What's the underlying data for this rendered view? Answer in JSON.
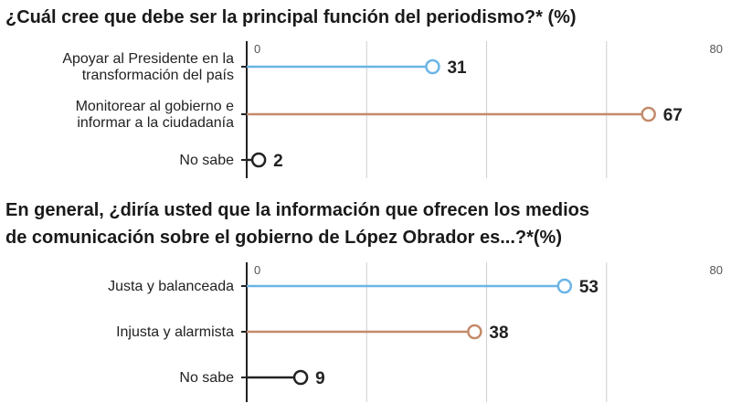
{
  "chart_data": [
    {
      "type": "lollipop",
      "title": "¿Cuál cree que debe ser la principal función del periodismo?* (%)",
      "axis": {
        "min_label": "0",
        "max_label": "80",
        "range": [
          0,
          80
        ]
      },
      "categories": [
        "Apoyar al Presidente en la\ntransformación del país",
        "Monitorear al gobierno e\ninformar a la ciudadanía",
        "No sabe"
      ],
      "values": [
        31,
        67,
        2
      ],
      "value_labels": [
        "31",
        "67",
        "2"
      ],
      "colors": [
        "#6bb4e6",
        "#c48a6a",
        "#222222"
      ]
    },
    {
      "type": "lollipop",
      "title": "En general, ¿diría usted que la información que ofrecen los medios\nde comunicación sobre el gobierno de López Obrador es...?*(%)",
      "axis": {
        "min_label": "0",
        "max_label": "80",
        "range": [
          0,
          80
        ]
      },
      "categories": [
        "Justa y balanceada",
        "Injusta y alarmista",
        "No sabe"
      ],
      "values": [
        53,
        38,
        9
      ],
      "value_labels": [
        "53",
        "38",
        "9"
      ],
      "colors": [
        "#6bb4e6",
        "#c48a6a",
        "#222222"
      ]
    }
  ]
}
